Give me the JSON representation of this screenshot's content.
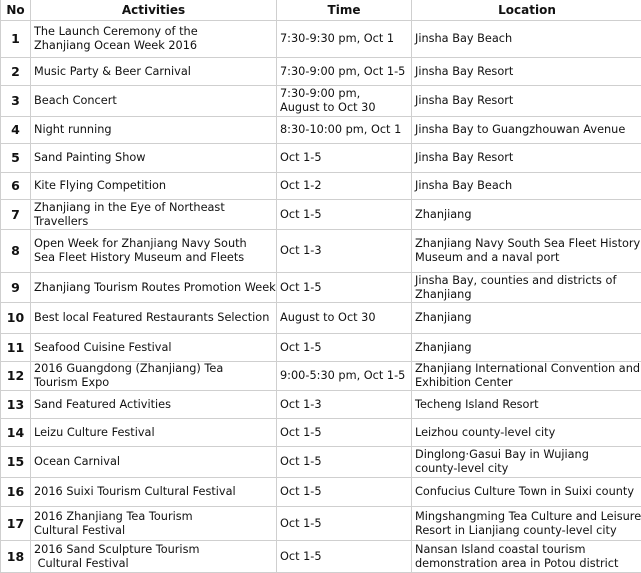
{
  "columns": [
    "No",
    "Activities",
    "Time",
    "Location"
  ],
  "rows": [
    {
      "no": "1",
      "activity": [
        "The Launch Ceremony of the",
        "Zhanjiang Ocean Week 2016"
      ],
      "time": [
        "7:30-9:30 pm, Oct 1"
      ],
      "location": [
        "Jinsha Bay Beach"
      ]
    },
    {
      "no": "2",
      "activity": [
        "Music Party & Beer Carnival"
      ],
      "time": [
        "7:30-9:00 pm, Oct 1-5"
      ],
      "location": [
        "Jinsha Bay Resort"
      ]
    },
    {
      "no": "3",
      "activity": [
        "Beach Concert"
      ],
      "time": [
        "7:30-9:00 pm,",
        "August to Oct 30"
      ],
      "location": [
        "Jinsha Bay Resort"
      ]
    },
    {
      "no": "4",
      "activity": [
        "Night running"
      ],
      "time": [
        "8:30-10:00 pm, Oct 1"
      ],
      "location": [
        "Jinsha Bay to Guangzhouwan Avenue"
      ]
    },
    {
      "no": "5",
      "activity": [
        "Sand Painting Show"
      ],
      "time": [
        "Oct 1-5"
      ],
      "location": [
        "Jinsha Bay Resort"
      ]
    },
    {
      "no": "6",
      "activity": [
        "Kite Flying Competition"
      ],
      "time": [
        "Oct 1-2"
      ],
      "location": [
        "Jinsha Bay Beach"
      ]
    },
    {
      "no": "7",
      "activity": [
        "Zhanjiang in the Eye of Northeast",
        "Travellers"
      ],
      "time": [
        "Oct 1-5"
      ],
      "location": [
        "Zhanjiang"
      ]
    },
    {
      "no": "8",
      "activity": [
        "Open Week for Zhanjiang Navy South",
        "Sea Fleet History Museum and Fleets"
      ],
      "time": [
        "Oct 1-3"
      ],
      "location": [
        "Zhanjiang Navy South Sea Fleet History",
        "Museum and a naval port"
      ]
    },
    {
      "no": "9",
      "activity": [
        "Zhanjiang Tourism Routes Promotion Week"
      ],
      "time": [
        "Oct 1-5"
      ],
      "location": [
        "Jinsha Bay, counties and districts of",
        "Zhanjiang"
      ]
    },
    {
      "no": "10",
      "activity": [
        "Best local Featured Restaurants Selection"
      ],
      "time": [
        "August to Oct 30"
      ],
      "location": [
        "Zhanjiang"
      ]
    },
    {
      "no": "11",
      "activity": [
        "Seafood Cuisine Festival"
      ],
      "time": [
        "Oct 1-5"
      ],
      "location": [
        "Zhanjiang"
      ]
    },
    {
      "no": "12",
      "activity": [
        "2016 Guangdong (Zhanjiang) Tea",
        "Tourism Expo"
      ],
      "time": [
        "9:00-5:30 pm, Oct 1-5"
      ],
      "location": [
        "Zhanjiang International Convention and",
        "Exhibition Center"
      ]
    },
    {
      "no": "13",
      "activity": [
        "Sand Featured Activities"
      ],
      "time": [
        "Oct 1-3"
      ],
      "location": [
        "Techeng Island Resort"
      ]
    },
    {
      "no": "14",
      "activity": [
        "Leizu Culture Festival"
      ],
      "time": [
        "Oct 1-5"
      ],
      "location": [
        "Leizhou county-level city"
      ]
    },
    {
      "no": "15",
      "activity": [
        "Ocean Carnival"
      ],
      "time": [
        "Oct 1-5"
      ],
      "location": [
        "Dinglong·Gasui Bay in Wujiang",
        "county-level city"
      ]
    },
    {
      "no": "16",
      "activity": [
        "2016 Suixi Tourism Cultural Festival"
      ],
      "time": [
        "Oct 1-5"
      ],
      "location": [
        "Confucius Culture Town in Suixi county"
      ]
    },
    {
      "no": "17",
      "activity": [
        "2016 Zhanjiang Tea Tourism",
        "Cultural Festival"
      ],
      "time": [
        "Oct 1-5"
      ],
      "location": [
        "Mingshangming Tea Culture and Leisure",
        "Resort in Lianjiang county-level city"
      ]
    },
    {
      "no": "18",
      "activity": [
        "2016 Sand Sculpture Tourism",
        " Cultural Festival"
      ],
      "time": [
        "Oct 1-5"
      ],
      "location": [
        "Nansan Island coastal tourism",
        "demonstration area in Potou district"
      ]
    }
  ]
}
